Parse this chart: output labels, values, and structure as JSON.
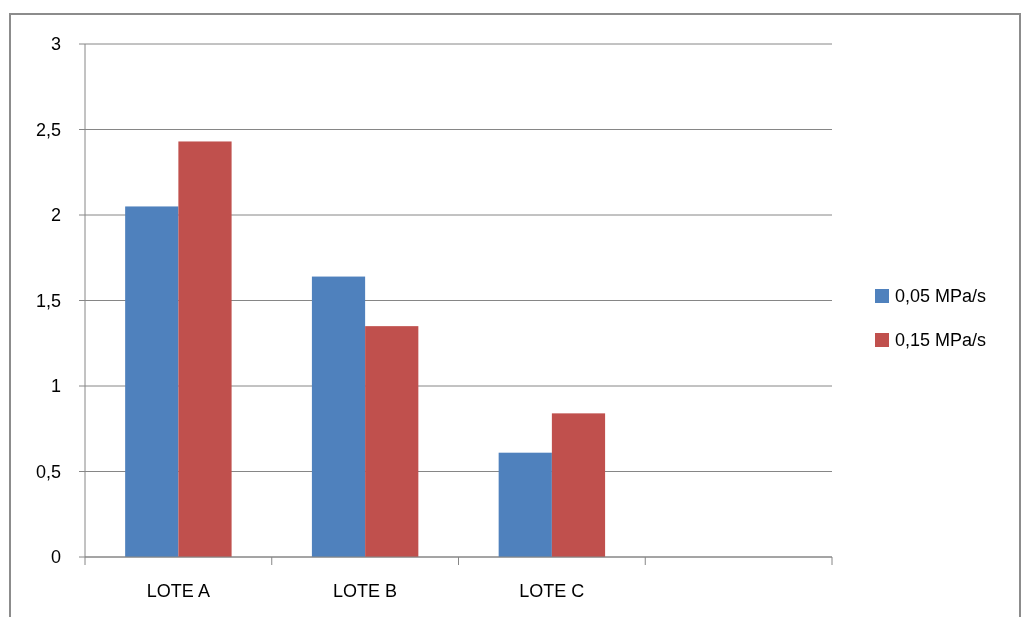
{
  "chart_data": {
    "type": "bar",
    "categories": [
      "LOTE A",
      "LOTE B",
      "LOTE C",
      null
    ],
    "series": [
      {
        "name": "0,05 MPa/s",
        "color": "#4f81bd",
        "values": [
          2.05,
          1.64,
          0.61,
          null
        ]
      },
      {
        "name": "0,15 MPa/s",
        "color": "#c0504d",
        "values": [
          2.43,
          1.35,
          0.84,
          null
        ]
      }
    ],
    "ylim": [
      0,
      3
    ],
    "yticks": [
      0,
      {
        "value": 0.5,
        "label": "0,5"
      },
      1,
      {
        "value": 1.5,
        "label": "1,5"
      },
      2,
      {
        "value": 2.5,
        "label": "2,5"
      },
      3
    ],
    "grid": "y",
    "legend": "right"
  }
}
